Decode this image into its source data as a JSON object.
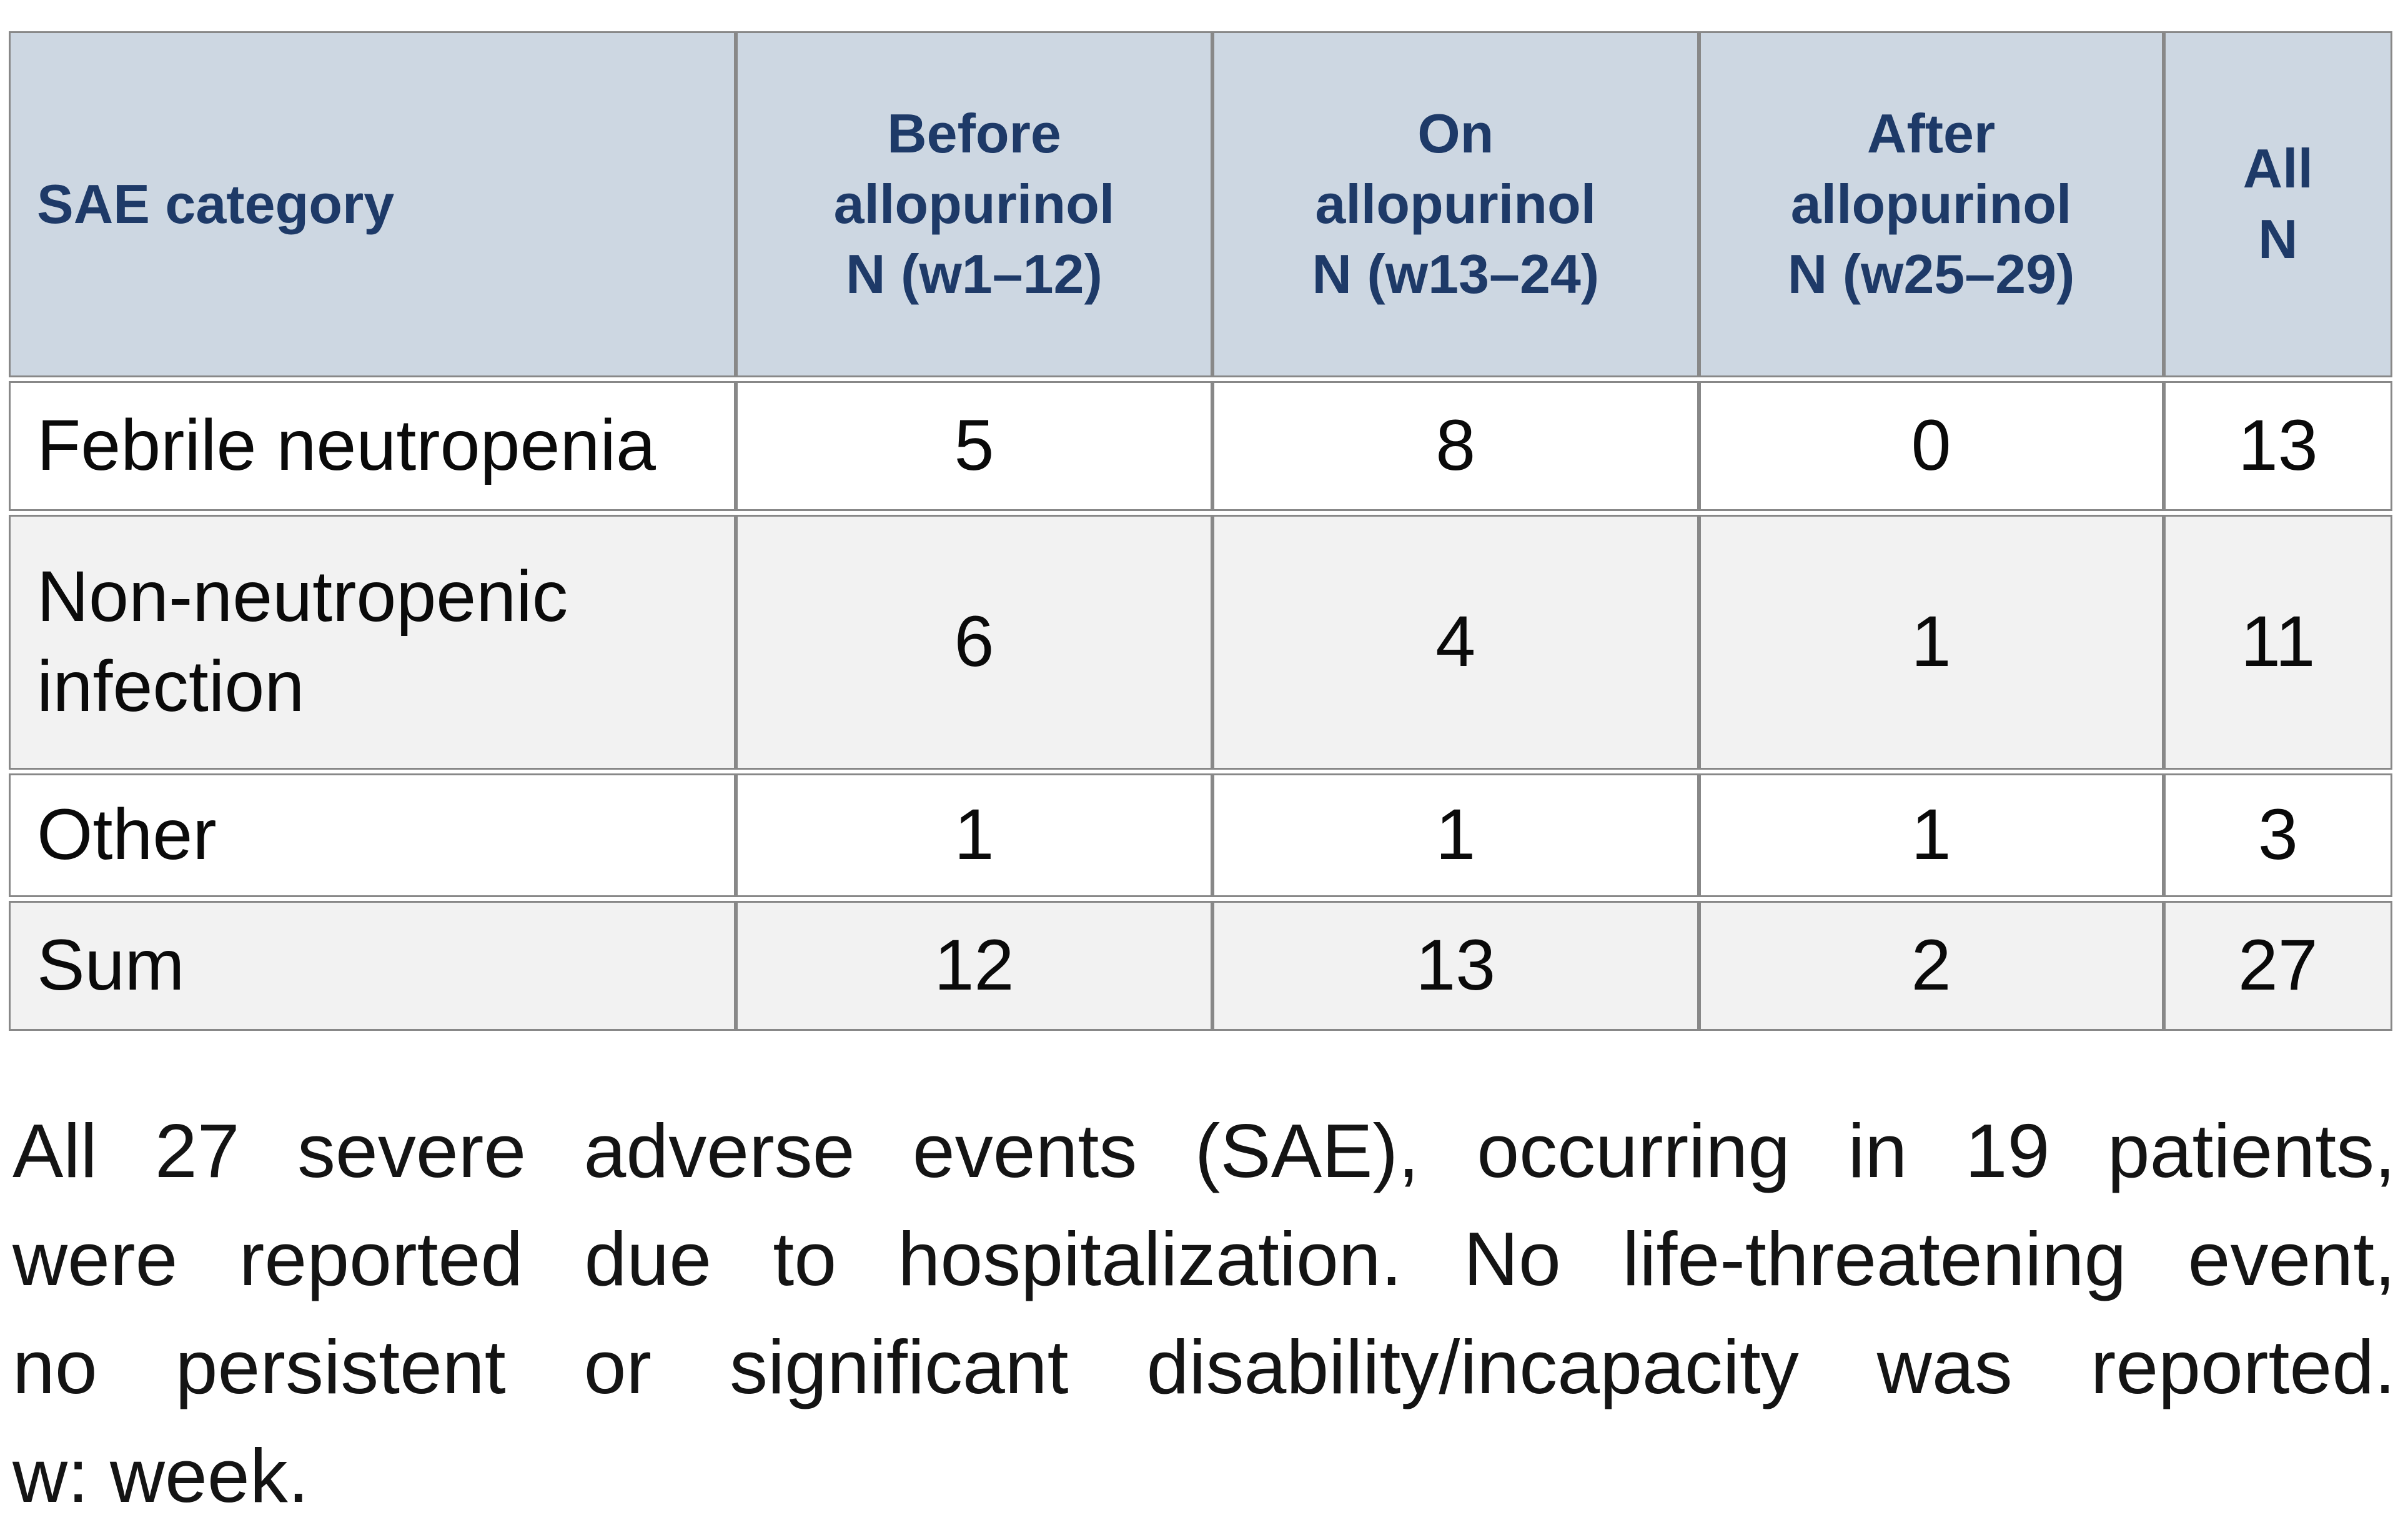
{
  "table": {
    "columns": [
      {
        "label": "SAE category"
      },
      {
        "label": "Before\nallopurinol\nN (w1–12)"
      },
      {
        "label": "On\nallopurinol\nN (w13–24)"
      },
      {
        "label": "After\nallopurinol\nN (w25–29)"
      },
      {
        "label": "All\nN"
      }
    ],
    "rows": [
      {
        "category": "Febrile neutropenia",
        "values": [
          "5",
          "8",
          "0",
          "13"
        ],
        "shaded": false
      },
      {
        "category": "Non-neutropenic infection",
        "values": [
          "6",
          "4",
          "1",
          "11"
        ],
        "shaded": true
      },
      {
        "category": "Other",
        "values": [
          "1",
          "1",
          "1",
          "3"
        ],
        "shaded": false
      },
      {
        "category": "Sum",
        "values": [
          "12",
          "13",
          "2",
          "27"
        ],
        "shaded": true
      }
    ]
  },
  "caption": {
    "justified_lines": [
      "All 27 severe adverse events (SAE), occurring in 19 patients,",
      "were reported due to hospitalization. No life-threatening event,",
      "no persistent or significant disability/incapacity was reported."
    ],
    "last_line": "w: week."
  },
  "colors": {
    "header_bg": "#cdd7e2",
    "header_text": "#1e3a68",
    "row_alt_bg": "#f2f2f2",
    "border": "#888888",
    "body_text": "#0a0a0a"
  },
  "chart_data": {
    "type": "table",
    "title": "Severe adverse events by allopurinol treatment period",
    "categories": [
      "Febrile neutropenia",
      "Non-neutropenic infection",
      "Other",
      "Sum"
    ],
    "series": [
      {
        "name": "Before allopurinol N (w1–12)",
        "values": [
          5,
          6,
          1,
          12
        ]
      },
      {
        "name": "On allopurinol N (w13–24)",
        "values": [
          8,
          4,
          1,
          13
        ]
      },
      {
        "name": "After allopurinol N (w25–29)",
        "values": [
          0,
          1,
          1,
          2
        ]
      },
      {
        "name": "All N",
        "values": [
          13,
          11,
          3,
          27
        ]
      }
    ]
  }
}
